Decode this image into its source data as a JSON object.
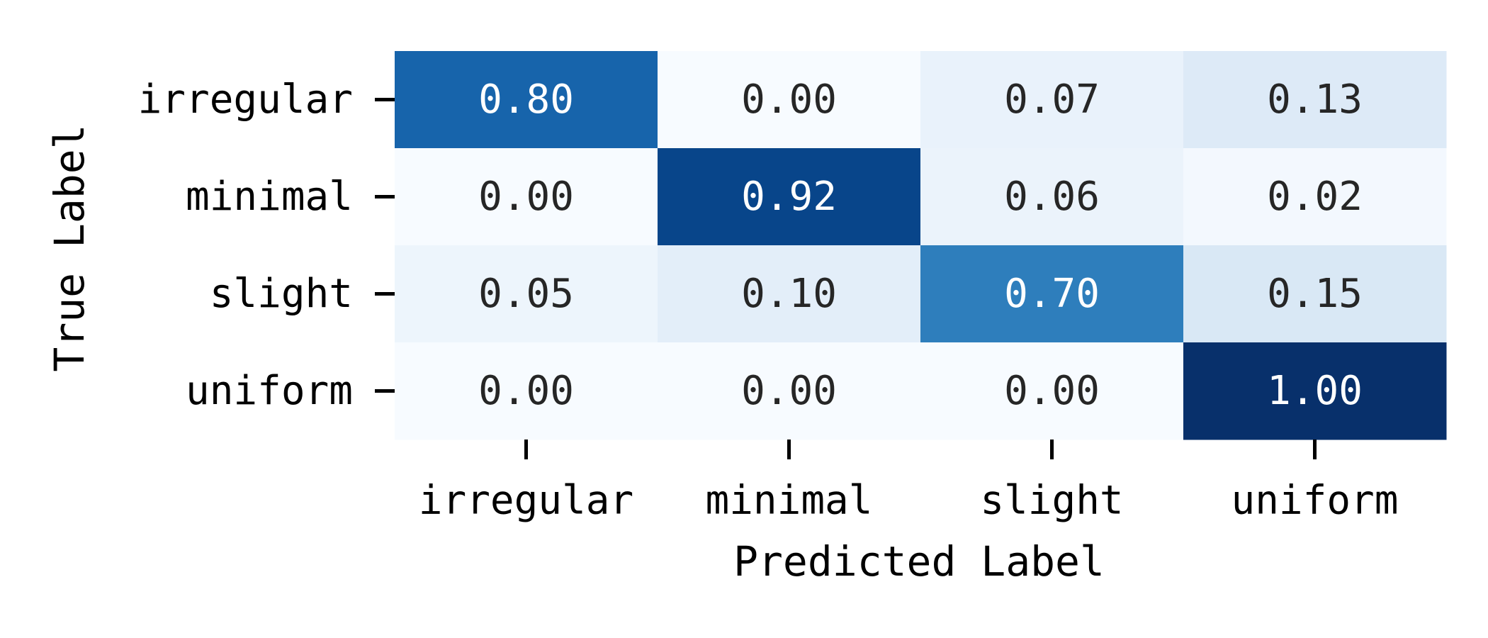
{
  "chart_data": {
    "type": "heatmap",
    "title": "",
    "xlabel": "Predicted Label",
    "ylabel": "True Label",
    "x_categories": [
      "irregular",
      "minimal",
      "slight",
      "uniform"
    ],
    "y_categories": [
      "irregular",
      "minimal",
      "slight",
      "uniform"
    ],
    "values": [
      [
        0.8,
        0.0,
        0.07,
        0.13
      ],
      [
        0.0,
        0.92,
        0.06,
        0.02
      ],
      [
        0.05,
        0.1,
        0.7,
        0.15
      ],
      [
        0.0,
        0.0,
        0.0,
        1.0
      ]
    ],
    "value_format": "2 decimals",
    "color_scale": {
      "name": "Blues",
      "range": [
        0,
        1
      ],
      "low_color": "#f7fbff",
      "high_color": "#08306b"
    },
    "text_colors": {
      "light": "#ffffff",
      "dark": "#262626"
    },
    "colorbar": false,
    "grid": false
  }
}
